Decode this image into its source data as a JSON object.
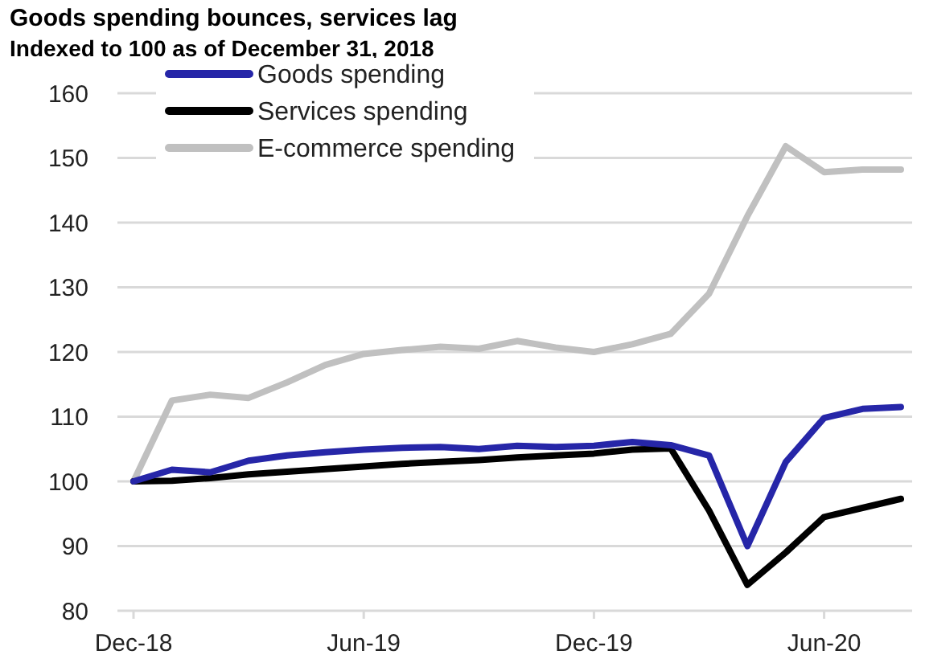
{
  "chart_data": {
    "type": "line",
    "title": "Goods spending bounces, services lag",
    "subtitle": "Indexed to 100 as of December 31, 2018",
    "categories": [
      "Dec-18",
      null,
      null,
      null,
      null,
      null,
      "Jun-19",
      null,
      null,
      null,
      null,
      null,
      "Dec-19",
      null,
      null,
      null,
      null,
      null,
      "Jun-20",
      null,
      null
    ],
    "series": [
      {
        "name": "Goods spending",
        "color": "#2626a8",
        "values": [
          100,
          101.8,
          101.4,
          103.2,
          104,
          104.5,
          104.9,
          105.2,
          105.3,
          105,
          105.5,
          105.3,
          105.5,
          106.1,
          105.6,
          104,
          90,
          103,
          109.8,
          111.2,
          111.5
        ]
      },
      {
        "name": "Services spending",
        "color": "#000000",
        "values": [
          100,
          100.1,
          100.5,
          101.1,
          101.5,
          101.9,
          102.3,
          102.7,
          103,
          103.3,
          103.7,
          104,
          104.3,
          104.9,
          105.1,
          95.5,
          84,
          89,
          94.5,
          95.9,
          97.3
        ]
      },
      {
        "name": "E-commerce spending",
        "color": "#c0c0c0",
        "values": [
          100,
          112.5,
          113.4,
          112.9,
          115.3,
          118,
          119.7,
          120.3,
          120.8,
          120.5,
          121.7,
          120.7,
          120,
          121.2,
          122.8,
          129,
          141,
          151.8,
          147.8,
          148.2,
          148.2
        ]
      }
    ],
    "ylim": [
      80,
      160
    ],
    "yticks": [
      80,
      90,
      100,
      110,
      120,
      130,
      140,
      150,
      160
    ],
    "grid": "y",
    "legend": "top left"
  }
}
